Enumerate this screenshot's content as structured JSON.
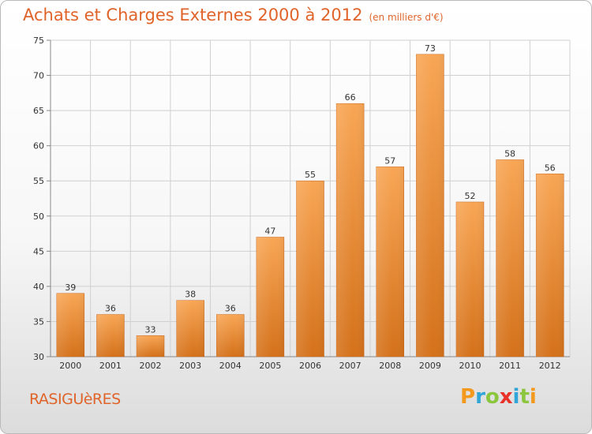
{
  "title": {
    "main": "Achats et Charges Externes 2000 à 2012",
    "unit": "(en milliers d'€)"
  },
  "town": "RASIGUèRES",
  "logo": {
    "text": "Proxiti",
    "letters": [
      {
        "ch": "P",
        "color": "#f39a1e"
      },
      {
        "ch": "r",
        "color": "#2fa5d8"
      },
      {
        "ch": "o",
        "color": "#8cc63f"
      },
      {
        "ch": "x",
        "color": "#e8332a"
      },
      {
        "ch": "i",
        "color": "#2fa5d8"
      },
      {
        "ch": "t",
        "color": "#8cc63f"
      },
      {
        "ch": "i",
        "color": "#f39a1e"
      }
    ]
  },
  "colors": {
    "accent": "#e0642a",
    "bar_top": "#f8a655",
    "bar_bottom": "#d4711a",
    "grid": "#d0d0d0"
  },
  "chart_data": {
    "type": "bar",
    "title": "Achats et Charges Externes 2000 à 2012",
    "subtitle": "(en milliers d'€)",
    "xlabel": "",
    "ylabel": "",
    "categories": [
      "2000",
      "2001",
      "2002",
      "2003",
      "2004",
      "2005",
      "2006",
      "2007",
      "2008",
      "2009",
      "2010",
      "2011",
      "2012"
    ],
    "values": [
      39,
      36,
      33,
      38,
      36,
      47,
      55,
      66,
      57,
      73,
      52,
      58,
      56
    ],
    "ylim": [
      30,
      75
    ],
    "yticks": [
      30,
      35,
      40,
      45,
      50,
      55,
      60,
      65,
      70,
      75
    ],
    "grid": true,
    "legend": "none"
  }
}
